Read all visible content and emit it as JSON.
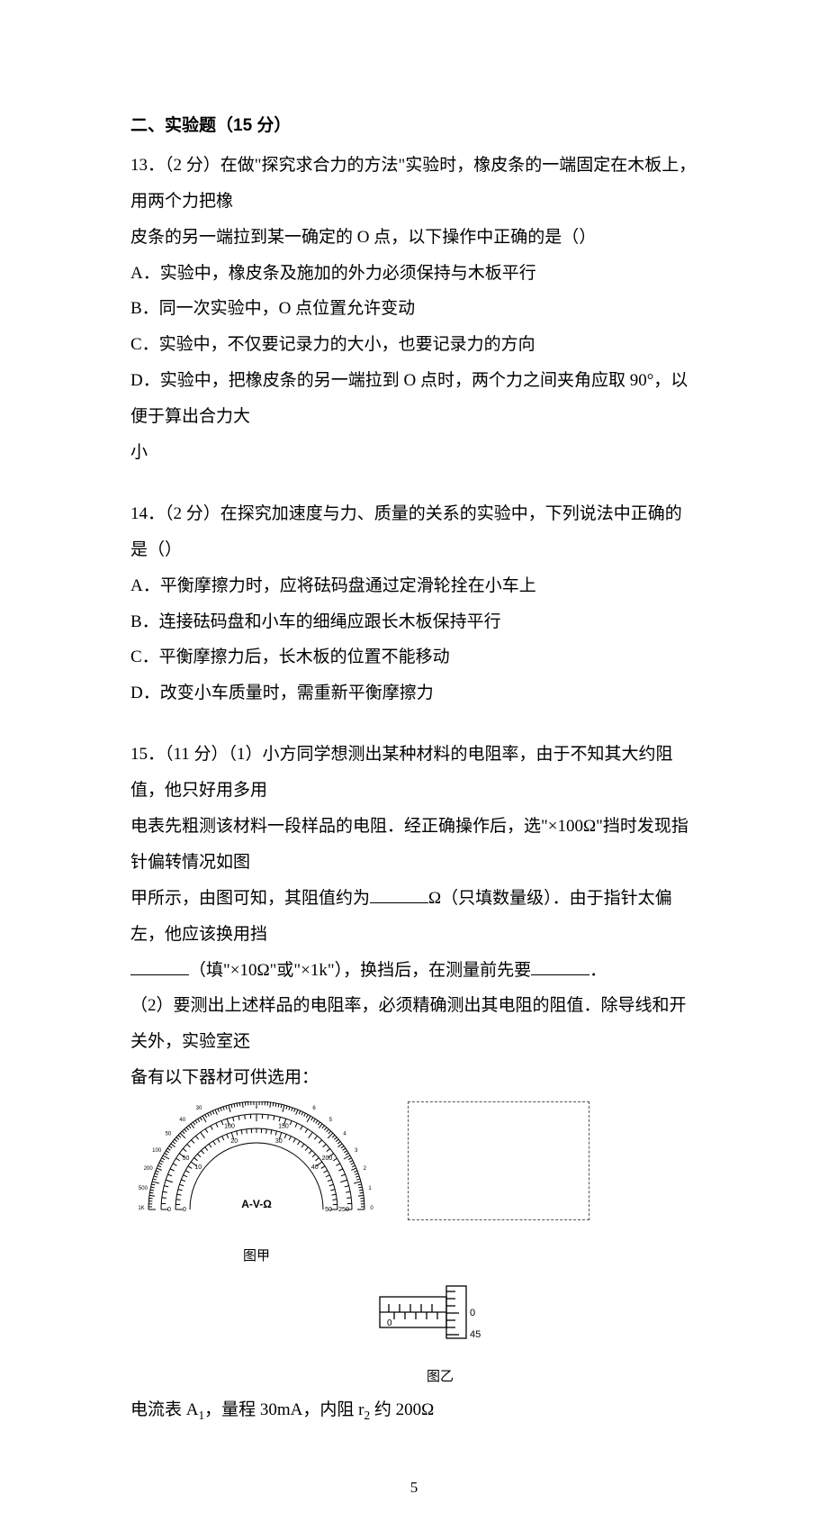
{
  "section": {
    "title": "二、实验题（15 分）"
  },
  "q13": {
    "stem_a": "13．（2 分）在做\"探究求合力的方法\"实验时，橡皮条的一端固定在木板上，用两个力把橡",
    "stem_b": "皮条的另一端拉到某一确定的 O 点，以下操作中正确的是（）",
    "A": "A．实验中，橡皮条及施加的外力必须保持与木板平行",
    "B": "B．同一次实验中，O 点位置允许变动",
    "C": "C．实验中，不仅要记录力的大小，也要记录力的方向",
    "D": "D．实验中，把橡皮条的另一端拉到 O 点时，两个力之间夹角应取 90°，以便于算出合力大",
    "D2": "小"
  },
  "q14": {
    "stem": "14．（2 分）在探究加速度与力、质量的关系的实验中，下列说法中正确的是（）",
    "A": "A．平衡摩擦力时，应将砝码盘通过定滑轮拴在小车上",
    "B": "B．连接砝码盘和小车的细绳应跟长木板保持平行",
    "C": "C．平衡摩擦力后，长木板的位置不能移动",
    "D": "D．改变小车质量时，需重新平衡摩擦力"
  },
  "q15": {
    "p1a": "15．（11 分）（1）小方同学想测出某种材料的电阻率，由于不知其大约阻值，他只好用多用",
    "p1b": "电表先粗测该材料一段样品的电阻．经正确操作后，选\"×100Ω\"挡时发现指针偏转情况如图",
    "p1c_pre": "甲所示，由图可知，其阻值约为",
    "p1c_mid": "Ω（只填数量级）．由于指针太偏左，他应该换用挡",
    "p1d_mid": "（填\"×10Ω\"或\"×1k\"），换挡后，在测量前先要",
    "p1d_end": "．",
    "p2a": "（2）要测出上述样品的电阻率，必须精确测出其电阻的阻值．除导线和开关外，实验室还",
    "p2b": "备有以下器材可供选用：",
    "meter": {
      "caption": "图甲",
      "center_label": "A-V-Ω",
      "top_scale": {
        "labels": [
          "1K",
          "500",
          "200",
          "100",
          "50",
          "40",
          "30",
          "25",
          "20",
          "15",
          "10",
          "8",
          "6",
          "5",
          "4",
          "3",
          "2",
          "1",
          "0"
        ]
      },
      "mid_scale": {
        "labels": [
          "0",
          "",
          "50",
          "",
          "100",
          "",
          "150",
          "",
          "200",
          "",
          "250"
        ]
      },
      "low_scale": {
        "labels": [
          "0",
          "10",
          "20",
          "30",
          "40",
          "50"
        ]
      },
      "fg": "#000000",
      "bg": "#ffffff"
    },
    "micrometer": {
      "caption": "图乙",
      "barrel_marks": [
        "0"
      ],
      "thimble_marks": [
        "0",
        "45"
      ],
      "fg": "#000000"
    },
    "item1_pre": "电流表 A",
    "item1_sub": "1",
    "item1_mid": "，量程 30mA，内阻 r",
    "item1_sub2": "2",
    "item1_end": " 约 200Ω"
  },
  "page_number": "5"
}
